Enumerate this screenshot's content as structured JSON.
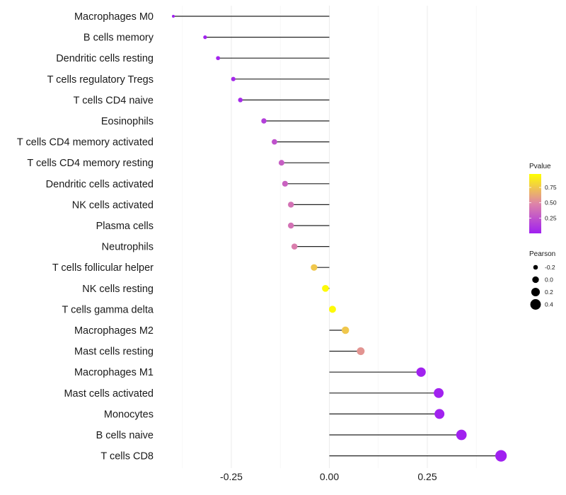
{
  "chart_data": {
    "type": "lollipop",
    "title": "",
    "xlabel": "",
    "ylabel": "",
    "xlim": [
      -0.42,
      0.46
    ],
    "x_ticks": [
      -0.25,
      0.0,
      0.25
    ],
    "x_tick_labels": [
      "-0.25",
      "0.00",
      "0.25"
    ],
    "minor_gridlines": [
      -0.375,
      -0.125,
      0.125,
      0.375
    ],
    "grid": true,
    "baseline": 0,
    "categories": [
      "Macrophages M0",
      "B cells memory",
      "Dendritic cells resting",
      "T cells regulatory  Tregs ",
      "T cells CD4 naive",
      "Eosinophils",
      "T cells CD4 memory activated",
      "T cells CD4 memory resting",
      "Dendritic cells activated",
      "NK cells activated",
      "Plasma cells",
      "Neutrophils",
      "T cells follicular helper",
      "NK cells resting",
      "T cells gamma delta",
      "Macrophages M2",
      "Mast cells resting",
      "Macrophages M1",
      "Mast cells activated",
      "Monocytes",
      "B cells naive",
      "T cells CD8"
    ],
    "series": [
      {
        "name": "Pearson",
        "values": [
          -0.398,
          -0.317,
          -0.284,
          -0.245,
          -0.227,
          -0.167,
          -0.14,
          -0.122,
          -0.113,
          -0.098,
          -0.098,
          -0.089,
          -0.039,
          -0.01,
          0.008,
          0.041,
          0.08,
          0.234,
          0.279,
          0.281,
          0.337,
          0.438
        ]
      },
      {
        "name": "Pvalue",
        "values": [
          0.001,
          0.01,
          0.02,
          0.04,
          0.05,
          0.15,
          0.24,
          0.3,
          0.32,
          0.4,
          0.4,
          0.45,
          0.75,
          0.95,
          0.95,
          0.75,
          0.55,
          0.01,
          0.01,
          0.01,
          0.005,
          0.001
        ]
      }
    ],
    "legend": {
      "placement": "right",
      "color": {
        "title": "Pvalue",
        "range": [
          0,
          0.97
        ],
        "ticks": [
          0.25,
          0.5,
          0.75
        ],
        "tick_labels": [
          "0.25",
          "0.50",
          "0.75"
        ],
        "low_color": "#A020F0",
        "mid_color": "#DE84A8",
        "high_color": "#FFFF00"
      },
      "size": {
        "title": "Pearson",
        "values": [
          -0.2,
          0.0,
          0.2,
          0.4
        ],
        "labels": [
          "-0.2",
          "0.0",
          "0.2",
          "0.4"
        ]
      }
    }
  }
}
